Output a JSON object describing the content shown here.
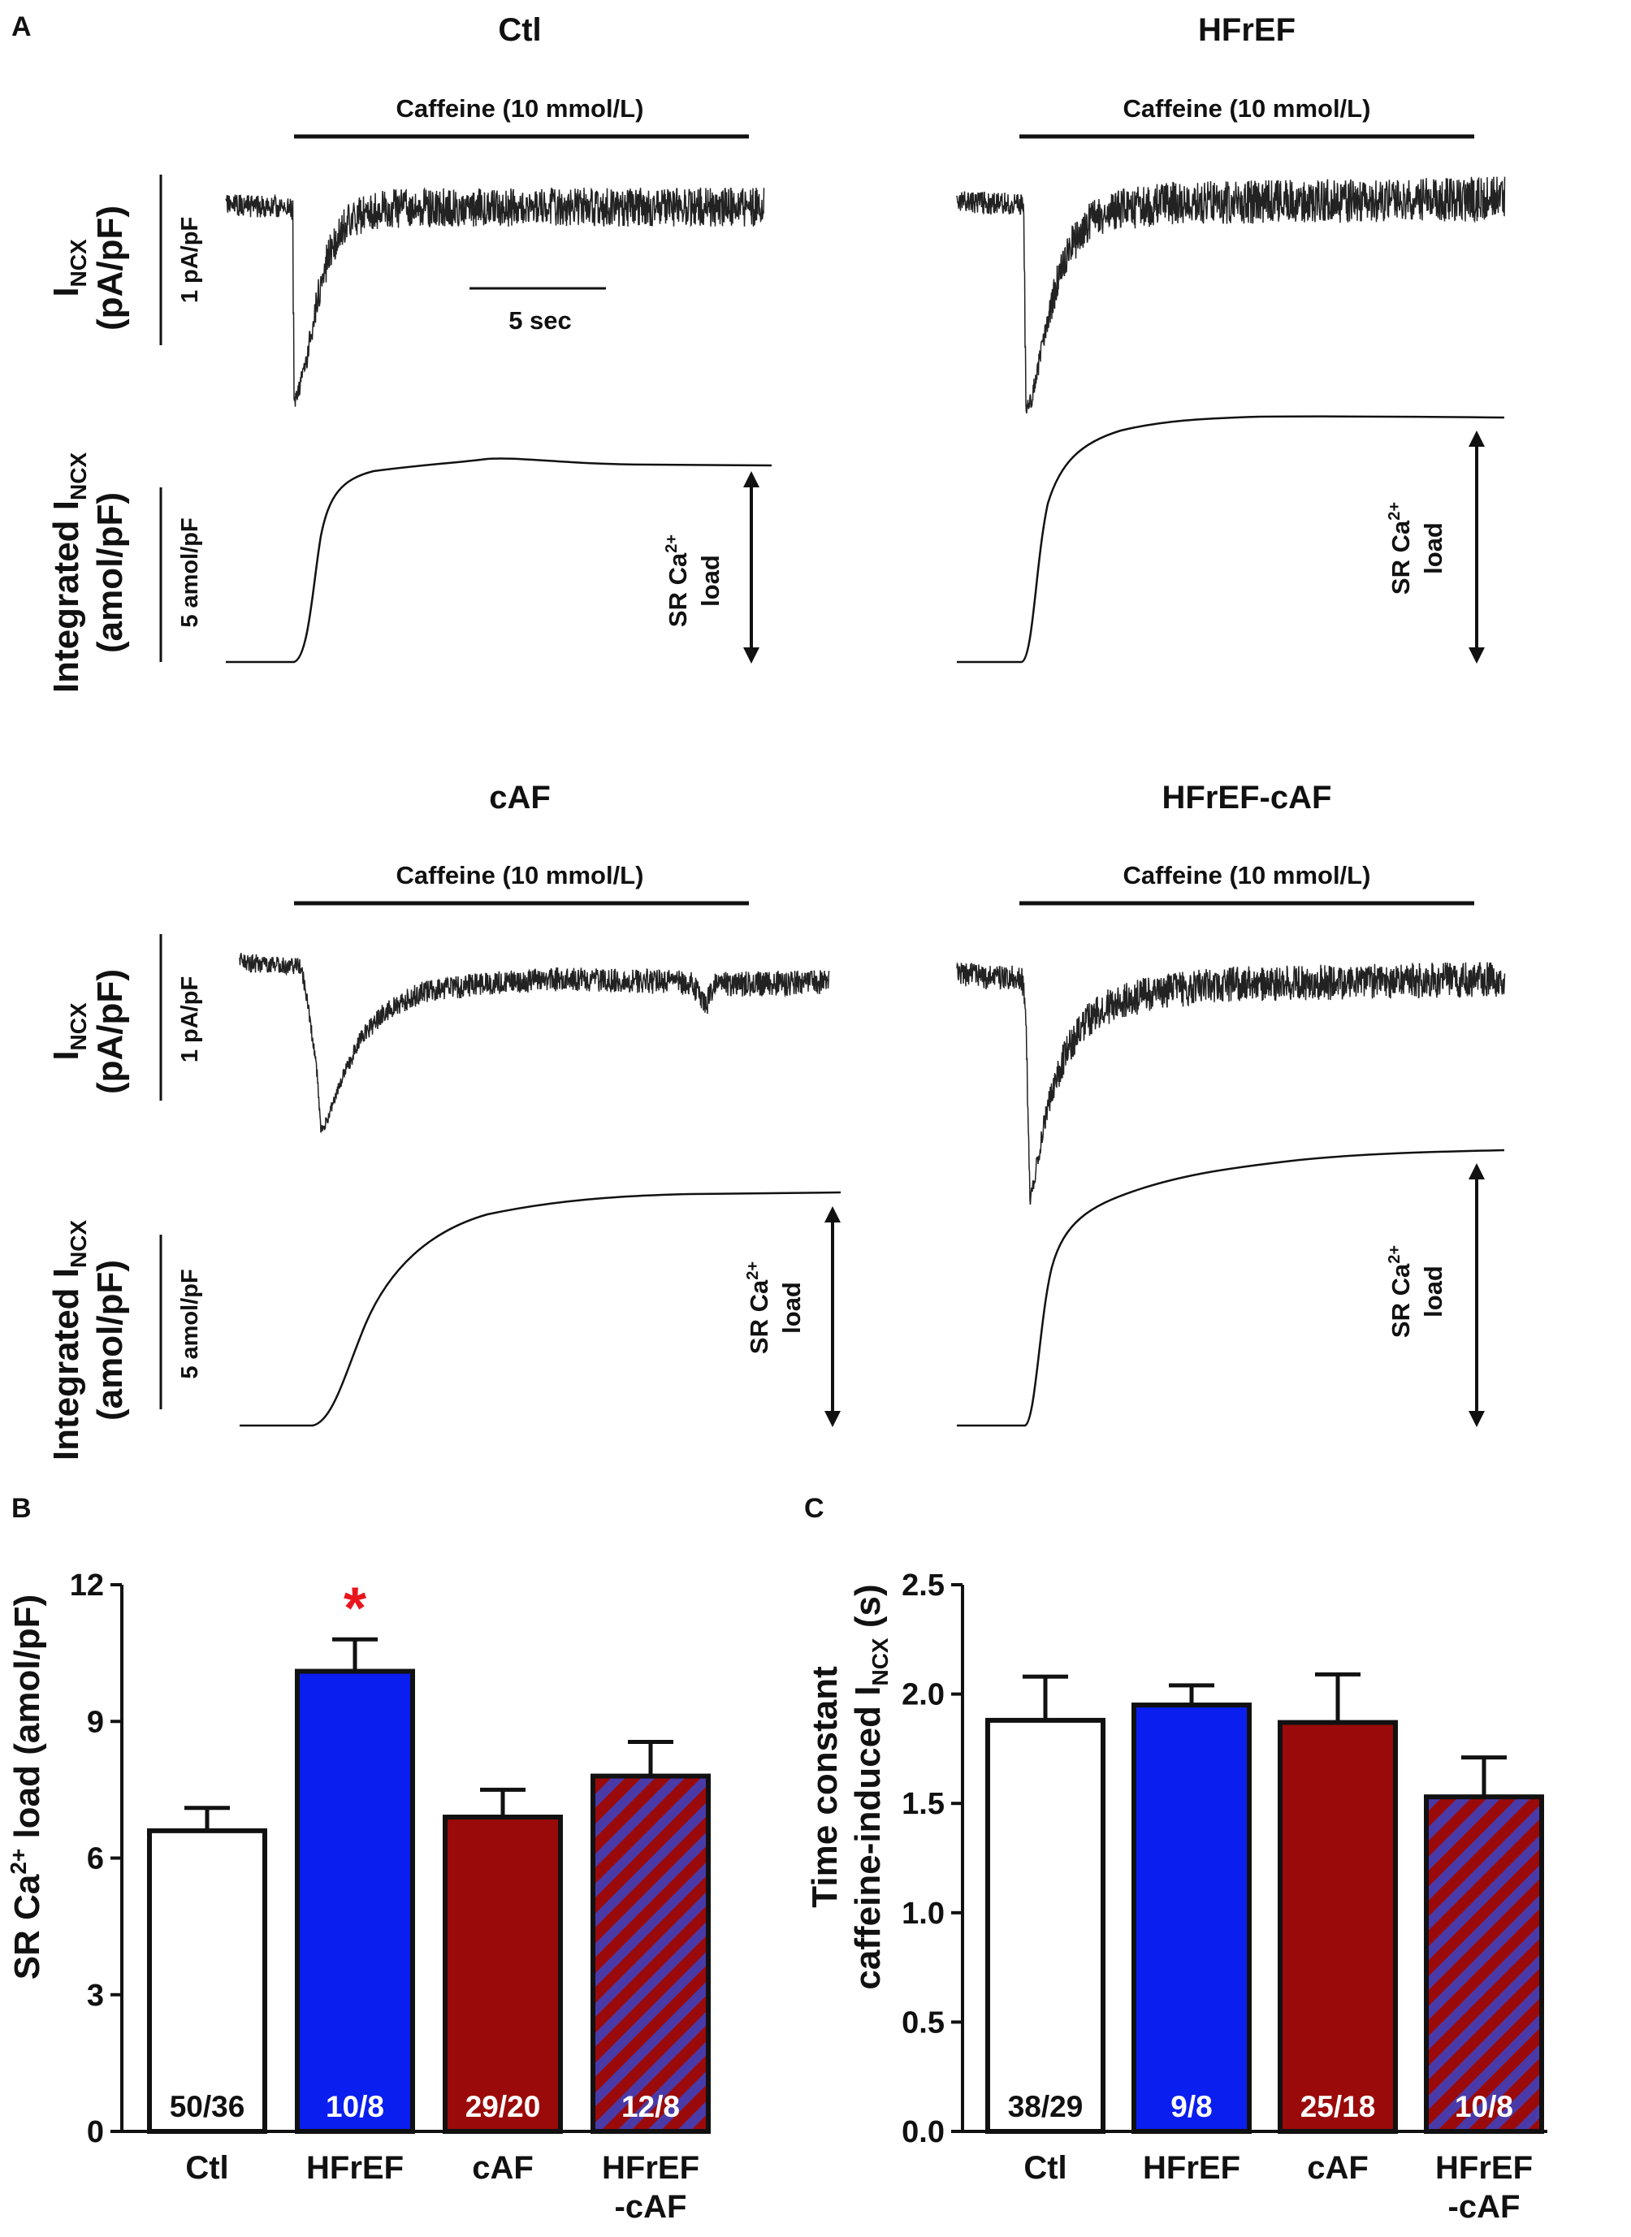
{
  "panels": {
    "A": "A",
    "B": "B",
    "C": "C"
  },
  "traces": [
    {
      "name": "ctl",
      "title": "Ctl",
      "caffeine_label": "Caffeine (10 mmol/L)",
      "time_scale_label": "5 sec",
      "current_scale_label": "1 pA/pF",
      "integral_scale_label": "5 amol/pF",
      "load_label_line1": "SR Ca",
      "load_label_sup": "2+",
      "load_label_line2": "load"
    },
    {
      "name": "hfref",
      "title": "HFrEF",
      "caffeine_label": "Caffeine (10 mmol/L)",
      "load_label_line1": "SR Ca",
      "load_label_sup": "2+",
      "load_label_line2": "load"
    },
    {
      "name": "caf",
      "title": "cAF",
      "caffeine_label": "Caffeine (10 mmol/L)",
      "current_scale_label": "1 pA/pF",
      "integral_scale_label": "5 amol/pF",
      "load_label_line1": "SR Ca",
      "load_label_sup": "2+",
      "load_label_line2": "load"
    },
    {
      "name": "hfref-caf",
      "title": "HFrEF-cAF",
      "caffeine_label": "Caffeine (10 mmol/L)",
      "load_label_line1": "SR Ca",
      "load_label_sup": "2+",
      "load_label_line2": "load"
    }
  ],
  "trace_axis_labels": {
    "current_main": "I",
    "current_sub": "NCX",
    "current_unit": "(pA/pF)",
    "integral_main": "Integrated I",
    "integral_sub": "NCX",
    "integral_unit": "(amol/pF)"
  },
  "chart_data": [
    {
      "panel": "B",
      "type": "bar",
      "categories": [
        "Ctl",
        "HFrEF",
        "cAF",
        "HFrEF-cAF"
      ],
      "category_lines": [
        [
          "Ctl"
        ],
        [
          "HFrEF"
        ],
        [
          "cAF"
        ],
        [
          "HFrEF",
          "-cAF"
        ]
      ],
      "values": [
        6.6,
        10.1,
        6.9,
        7.8
      ],
      "errors": [
        0.5,
        0.7,
        0.6,
        0.75
      ],
      "n_labels": [
        "50/36",
        "10/8",
        "29/20",
        "12/8"
      ],
      "significance": [
        "",
        "*",
        "",
        ""
      ],
      "ylabel": "SR Ca2+ load (amol/pF)",
      "ylabel_parts": {
        "pre": "SR Ca",
        "sup": "2+",
        "post": " load (amol/pF)"
      },
      "ylim": [
        0,
        12
      ],
      "yticks": [
        0,
        3,
        6,
        9,
        12
      ],
      "ytick_labels": [
        "0",
        "3",
        "6",
        "9",
        "12"
      ],
      "colors": [
        "#ffffff",
        "#0a1ef0",
        "#9b0a0a",
        "hatched"
      ]
    },
    {
      "panel": "C",
      "type": "bar",
      "categories": [
        "Ctl",
        "HFrEF",
        "cAF",
        "HFrEF-cAF"
      ],
      "category_lines": [
        [
          "Ctl"
        ],
        [
          "HFrEF"
        ],
        [
          "cAF"
        ],
        [
          "HFrEF",
          "-cAF"
        ]
      ],
      "values": [
        1.88,
        1.95,
        1.87,
        1.53
      ],
      "errors": [
        0.2,
        0.09,
        0.22,
        0.18
      ],
      "n_labels": [
        "38/29",
        "9/8",
        "25/18",
        "10/8"
      ],
      "significance": [
        "",
        "",
        "",
        ""
      ],
      "ylabel": "Time constant caffeine-induced INCX (s)",
      "ylabel_parts": {
        "line1": "Time constant",
        "line2_pre": "caffeine-induced I",
        "line2_sub": "NCX",
        "line2_post": " (s)"
      },
      "ylim": [
        0,
        2.5
      ],
      "yticks": [
        0,
        0.5,
        1,
        1.5,
        2,
        2.5
      ],
      "ytick_labels": [
        "0.0",
        "0.5",
        "1.0",
        "1.5",
        "2.0",
        "2.5"
      ],
      "colors": [
        "#ffffff",
        "#0a1ef0",
        "#9b0a0a",
        "hatched"
      ]
    }
  ]
}
